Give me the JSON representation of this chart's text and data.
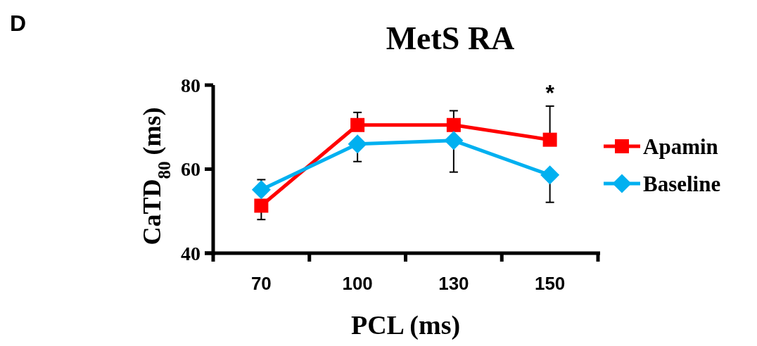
{
  "chart_data": {
    "type": "line",
    "title": "MetS RA",
    "xlabel": "PCL (ms)",
    "ylabel": "CaTD$_{80}$ (ms)",
    "categories": [
      "70",
      "100",
      "130",
      "150"
    ],
    "series": [
      {
        "name": "Apamin",
        "color": "#ff0000",
        "marker": "square",
        "values": [
          51.3,
          70.5,
          70.5,
          67.0
        ],
        "errors": [
          [
            48.0,
            51.3
          ],
          [
            70.5,
            73.5
          ],
          [
            70.5,
            73.9
          ],
          [
            67.0,
            75.0
          ]
        ]
      },
      {
        "name": "Baseline",
        "color": "#00b0f0",
        "marker": "diamond",
        "values": [
          55.1,
          66.0,
          66.8,
          58.6
        ],
        "errors": [
          [
            55.1,
            57.5
          ],
          [
            61.8,
            66.0
          ],
          [
            59.3,
            66.8
          ],
          [
            52.1,
            58.6
          ]
        ]
      }
    ],
    "ylim": [
      40,
      80
    ],
    "yticks": [
      40,
      60,
      80
    ],
    "grid": false,
    "legend": "right",
    "annotations": [
      "D",
      "*"
    ]
  }
}
